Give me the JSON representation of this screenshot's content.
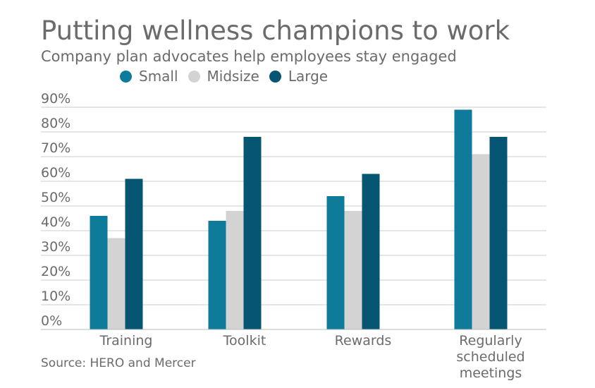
{
  "title": "Putting wellness champions to work",
  "subtitle": "Company plan advocates help employees stay engaged",
  "source": "Source: HERO and Mercer",
  "chart_data": {
    "type": "bar",
    "categories": [
      "Training",
      "Toolkit",
      "Rewards",
      "Regularly scheduled meetings"
    ],
    "category_lines": [
      [
        "Training"
      ],
      [
        "Toolkit"
      ],
      [
        "Rewards"
      ],
      [
        "Regularly",
        "scheduled",
        "meetings"
      ]
    ],
    "series": [
      {
        "name": "Small",
        "values": [
          46,
          44,
          54,
          89
        ],
        "color": "#0e7b9b"
      },
      {
        "name": "Midsize",
        "values": [
          37,
          48,
          48,
          71
        ],
        "color": "#d3d3d3"
      },
      {
        "name": "Large",
        "values": [
          61,
          78,
          63,
          78
        ],
        "color": "#065673"
      }
    ],
    "ylim": [
      0,
      90
    ],
    "yticks": [
      "0%",
      "10%",
      "20%",
      "30%",
      "40%",
      "50%",
      "60%",
      "70%",
      "80%",
      "90%"
    ],
    "legend_position": "top",
    "grid": true,
    "grid_color": "#cccccc",
    "axis_color": "#bbbbbb"
  }
}
